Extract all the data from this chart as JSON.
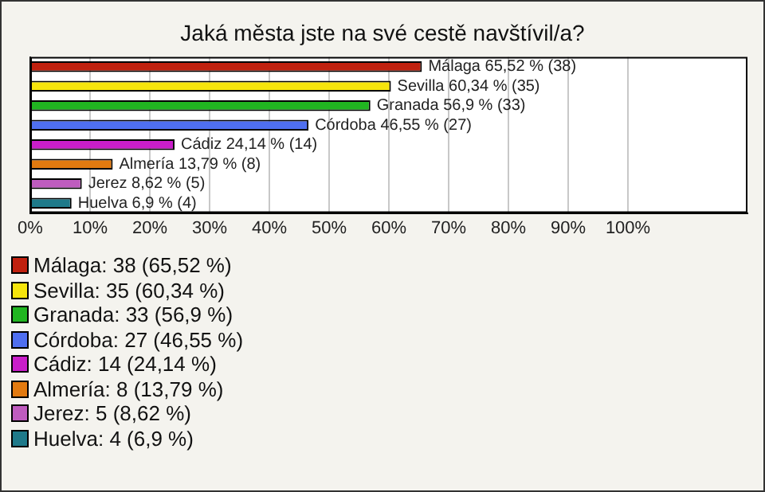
{
  "chart_data": {
    "type": "bar",
    "orientation": "horizontal",
    "title": "Jaká města jste na své cestě navštívil/a?",
    "categories": [
      null,
      null,
      null,
      null,
      null,
      null,
      null,
      null
    ],
    "values": [
      65.52,
      60.34,
      56.9,
      46.55,
      24.14,
      13.79,
      8.62,
      6.9
    ],
    "colors": [
      "#c0210f",
      "#f6e50c",
      "#21b521",
      "#4f6ff0",
      "#c91ec9",
      "#e27a10",
      "#bf5cbf",
      "#1f7a8a"
    ],
    "value_labels": [
      "Málaga 65,52 % (38)",
      "Sevilla 60,34 % (35)",
      "Granada 56,9 % (33)",
      "Córdoba 46,55 % (27)",
      "Cádiz 24,14 % (14)",
      "Almería 13,79 % (8)",
      "Jerez 8,62 % (5)",
      "Huelva 6,9 % (4)"
    ],
    "xlim": [
      0,
      120
    ],
    "xticks": [
      {
        "value": 0,
        "label": "0%"
      },
      {
        "value": 10,
        "label": "10%"
      },
      {
        "value": 20,
        "label": "20%"
      },
      {
        "value": 30,
        "label": "30%"
      },
      {
        "value": 40,
        "label": "40%"
      },
      {
        "value": 50,
        "label": "50%"
      },
      {
        "value": 60,
        "label": "60%"
      },
      {
        "value": 70,
        "label": "70%"
      },
      {
        "value": 80,
        "label": "80%"
      },
      {
        "value": 90,
        "label": "90%"
      },
      {
        "value": 100,
        "label": "100%"
      }
    ],
    "grid": "x",
    "tick_labels": "x",
    "annotations": [
      "Málaga: 38 (65,52 %)",
      "Sevilla: 35 (60,34 %)",
      "Granada: 33 (56,9 %)",
      "Córdoba: 27 (46,55 %)",
      "Cádiz: 14 (24,14 %)",
      "Almería: 8 (13,79 %)",
      "Jerez: 5 (8,62 %)",
      "Huelva: 4 (6,9 %)"
    ]
  }
}
